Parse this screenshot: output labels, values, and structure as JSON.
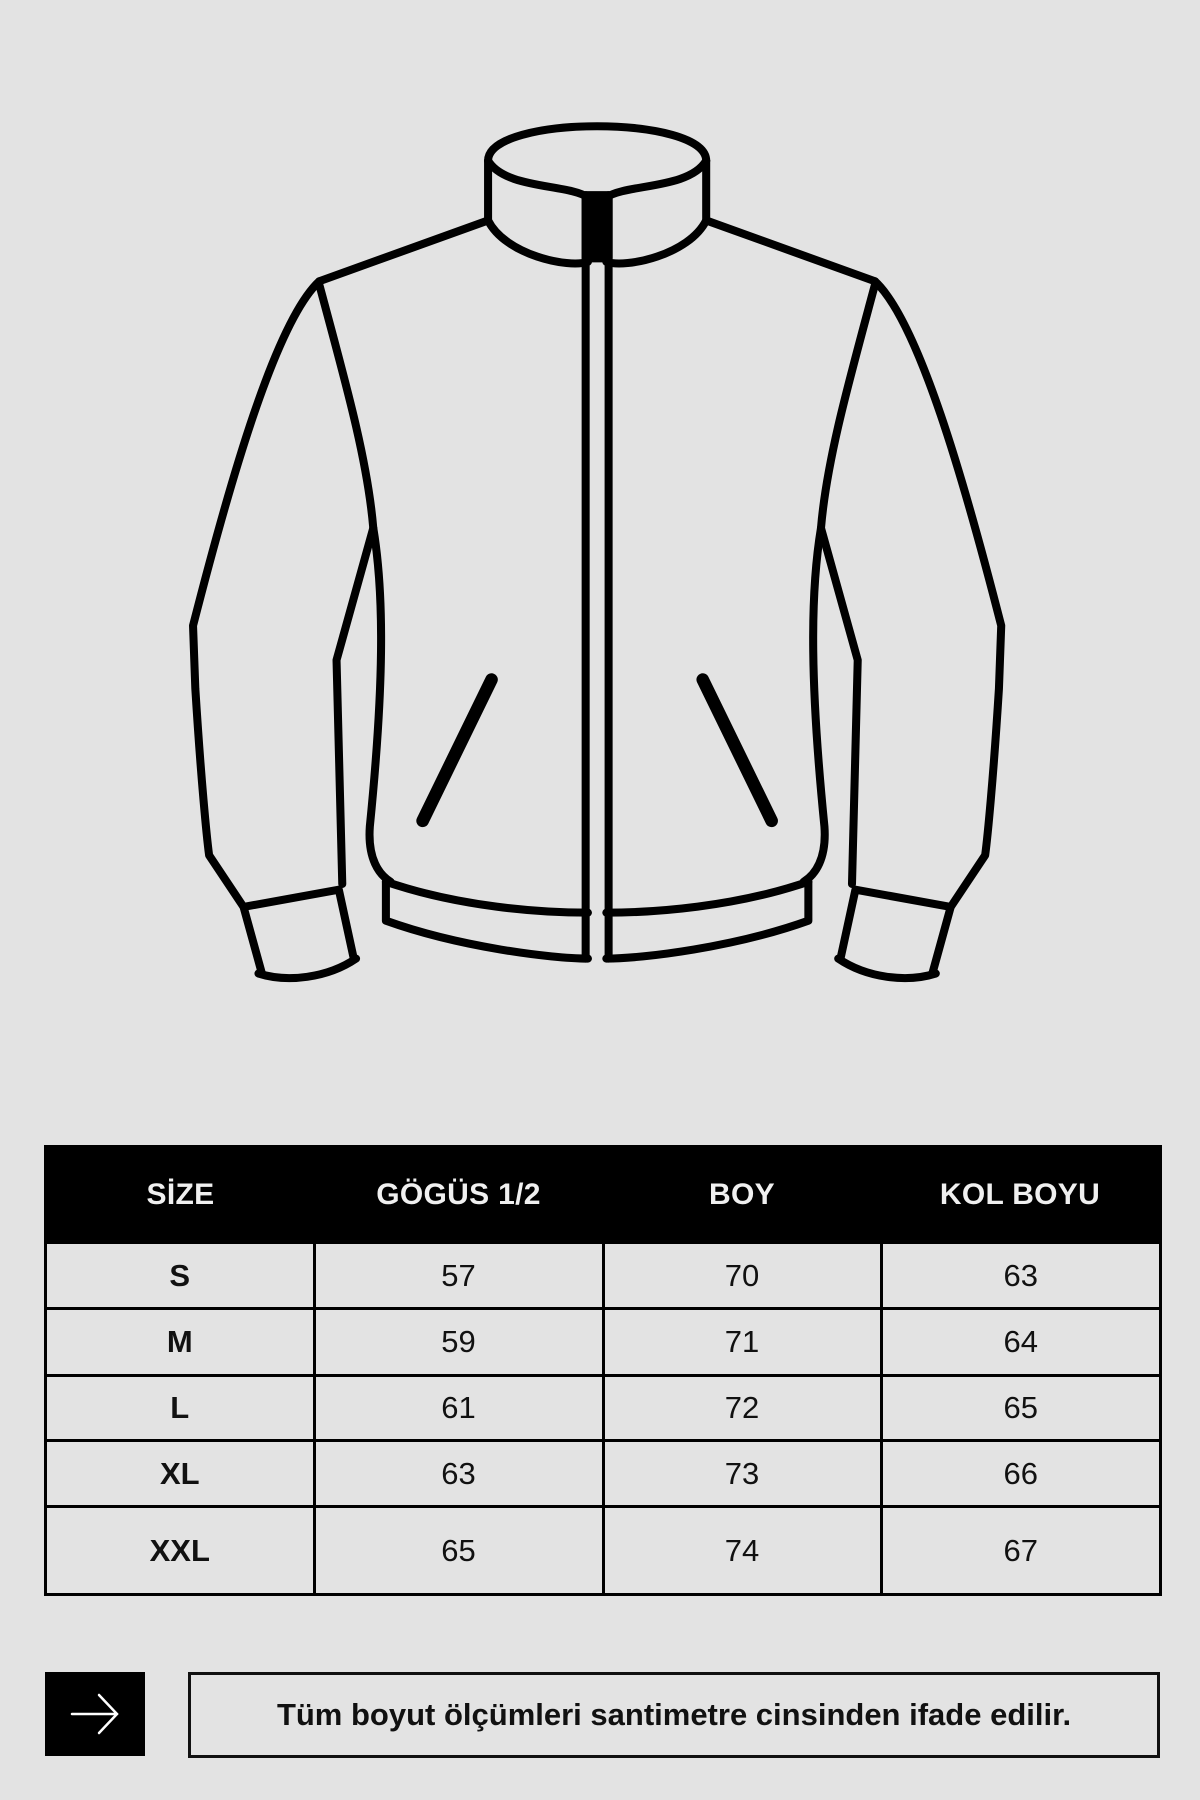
{
  "illustration": {
    "icon": "jacket-outline-icon"
  },
  "size_table": {
    "headers": [
      "SİZE",
      "GÖGÜS 1/2",
      "BOY",
      "KOL BOYU"
    ],
    "rows": [
      [
        "S",
        "57",
        "70",
        "63"
      ],
      [
        "M",
        "59",
        "71",
        "64"
      ],
      [
        "L",
        "61",
        "72",
        "65"
      ],
      [
        "XL",
        "63",
        "73",
        "66"
      ],
      [
        "XXL",
        "65",
        "74",
        "67"
      ]
    ]
  },
  "footer": {
    "icon": "arrow-right-icon",
    "note": "Tüm boyut ölçümleri santimetre cinsinden ifade edilir."
  },
  "colors": {
    "background": "#e3e3e3",
    "header": "#000000",
    "text": "#111111"
  }
}
